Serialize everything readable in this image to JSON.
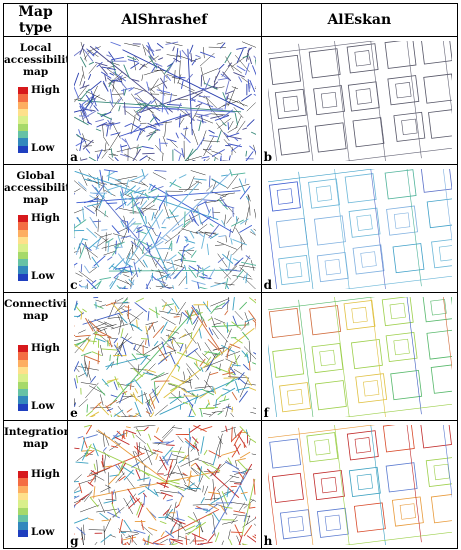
{
  "header": {
    "map_type": "Map type",
    "col1": "AlShrashef",
    "col2": "AlEskan"
  },
  "scale": {
    "high": "High",
    "low": "Low",
    "colors": [
      "#d7191c",
      "#f46d43",
      "#fdae61",
      "#fee08b",
      "#d9ef8b",
      "#a6d96a",
      "#66c2a5",
      "#3288bd",
      "#1f3fbf"
    ]
  },
  "rows": [
    {
      "title_lines": [
        "Local",
        "accessibility",
        "map"
      ],
      "letter_left": "a",
      "letter_right": "b",
      "palette": [
        "#2b3fae",
        "#3d52c4",
        "#5b6fd6",
        "#4a4a8a",
        "#6f79c9",
        "#3a8a7a"
      ]
    },
    {
      "title_lines": [
        "Global",
        "accessibility",
        "map"
      ],
      "letter_left": "c",
      "letter_right": "d",
      "palette": [
        "#3a5bd0",
        "#3fa0c8",
        "#6ab6d8",
        "#5a6fc8",
        "#4fb39a",
        "#7fb0e0"
      ]
    },
    {
      "title_lines": [
        "Connectivity",
        "map"
      ],
      "letter_left": "e",
      "letter_right": "f",
      "palette": [
        "#3aa0c0",
        "#56b86a",
        "#9ccf4a",
        "#e0c040",
        "#3b5bc0",
        "#d06a3a"
      ]
    },
    {
      "title_lines": [
        "Integration",
        "map"
      ],
      "letter_left": "g",
      "letter_right": "h",
      "palette": [
        "#d84a2a",
        "#e89a3a",
        "#9ccf4a",
        "#3aa0c0",
        "#c02a2a",
        "#5a7ad0"
      ]
    }
  ]
}
